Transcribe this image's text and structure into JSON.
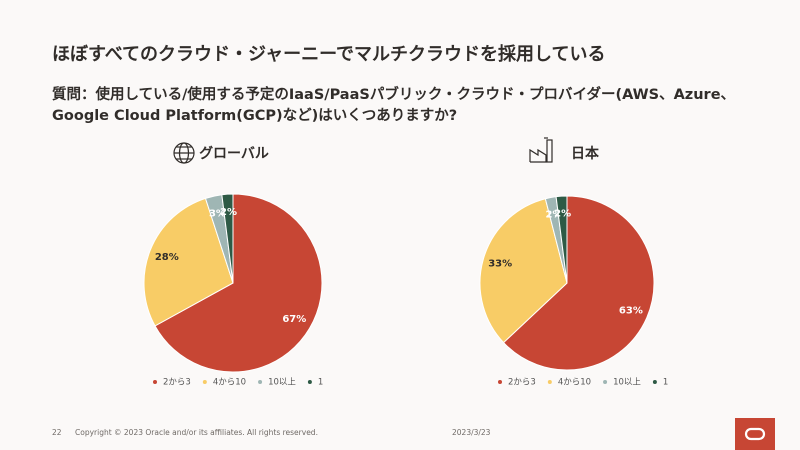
{
  "slide": {
    "title": "ほぼすべてのクラウド・ジャーニーでマルチクラウドを採用している",
    "question": "質問：使用している/使用する予定のIaaS/PaaSパブリック・クラウド・プロバイダー(AWS、Azure、Google Cloud Platform(GCP)など)はいくつありますか?",
    "page_number": "22",
    "copyright": "Copyright © 2023 Oracle and/or its affiliates. All rights reserved.",
    "date": "2023/3/23"
  },
  "chart_data": [
    {
      "type": "pie",
      "title": "グローバル",
      "categories": [
        "2から3",
        "4から10",
        "10以上",
        "1"
      ],
      "values": [
        67,
        28,
        3,
        2
      ],
      "value_labels": [
        "67%",
        "28%",
        "3%",
        "2%"
      ],
      "colors": [
        "#c74634",
        "#f8cc66",
        "#9fb6b4",
        "#2e5a45"
      ],
      "legend": "bottom"
    },
    {
      "type": "pie",
      "title": "日本",
      "categories": [
        "2から3",
        "4から10",
        "10以上",
        "1"
      ],
      "values": [
        63,
        33,
        2,
        2
      ],
      "value_labels": [
        "63%",
        "33%",
        "2%",
        "2%"
      ],
      "colors": [
        "#c74634",
        "#f8cc66",
        "#9fb6b4",
        "#2e5a45"
      ],
      "legend": "bottom"
    }
  ]
}
